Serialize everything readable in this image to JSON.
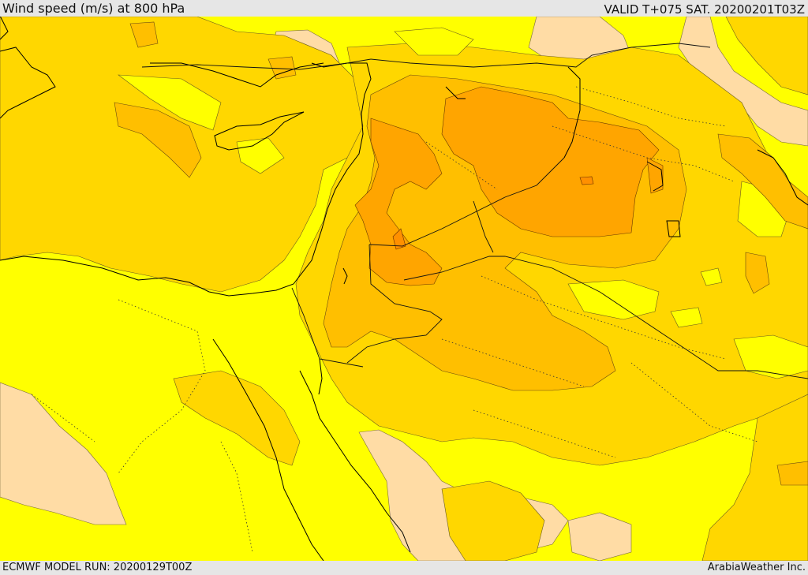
{
  "header": {
    "title": "Wind speed (m/s) at 800 hPa",
    "valid_time": "VALID T+075 SAT. 20200201T03Z"
  },
  "footer": {
    "model_run": "ECMWF MODEL RUN: 20200129T00Z",
    "credit": "ArabiaWeather Inc."
  },
  "map": {
    "variable": "wind speed",
    "units": "m/s",
    "pressure_level": "800 hPa",
    "region": "Eastern Mediterranean, Levant, Arabian Peninsula",
    "colors": {
      "bin_lowest": "#ffdca5",
      "bin_low": "#ffff00",
      "bin_mid": "#ffd700",
      "bin_high": "#ffbf00",
      "bin_higher": "#ffa500",
      "bin_highest": "#ff9000",
      "frame_bar": "#e6e6e6"
    }
  }
}
